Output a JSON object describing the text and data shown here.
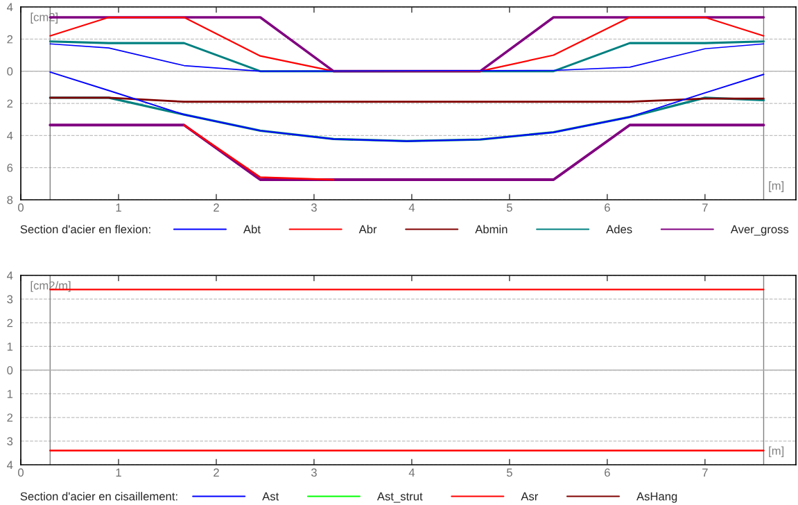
{
  "chart_data": [
    {
      "type": "line",
      "xlabel": "[m]",
      "ylabel": "[cm2]",
      "legend_title": "Section d'acier en flexion:",
      "legend": "bottom",
      "grid": "y",
      "xlim": [
        0,
        7.93
      ],
      "xticks": [
        0,
        1,
        2,
        3,
        4,
        5,
        6,
        7
      ],
      "ylim": [
        -8,
        4
      ],
      "yticks": [
        {
          "value": 4,
          "label": "4"
        },
        {
          "value": 2,
          "label": "2"
        },
        {
          "value": 0,
          "label": "0"
        },
        {
          "value": -2,
          "label": "2"
        },
        {
          "value": -4,
          "label": "4"
        },
        {
          "value": -6,
          "label": "6"
        },
        {
          "value": -8,
          "label": "8"
        }
      ],
      "ref_lines": [
        {
          "axis": "x",
          "value": 0.3,
          "color": "#808080"
        },
        {
          "axis": "x",
          "value": 7.6,
          "color": "#808080"
        },
        {
          "axis": "y",
          "value": 0,
          "color": "#b0b0b0"
        }
      ],
      "series": [
        {
          "name": "Abt",
          "color": "#0000ff",
          "x": [
            0.3,
            0.9,
            1.67,
            2.45,
            5.45,
            6.23,
            7.0,
            7.6
          ],
          "values": [
            1.7,
            1.45,
            0.35,
            0,
            0.05,
            0.25,
            1.4,
            1.7
          ]
        },
        {
          "color": "#0000ff",
          "x": [
            0.3,
            0.9,
            1.67,
            2.45,
            3.2,
            3.95,
            4.7,
            5.45,
            6.23,
            7.0,
            7.6
          ],
          "values": [
            -0.05,
            -1.2,
            -2.7,
            -3.7,
            -4.22,
            -4.35,
            -4.25,
            -3.8,
            -2.85,
            -1.35,
            -0.2
          ]
        },
        {
          "name": "Abr",
          "color": "#ff0000",
          "x": [
            0.3,
            0.9,
            1.67,
            2.45,
            3.2,
            4.7,
            5.45,
            6.23,
            7.0,
            7.6
          ],
          "values": [
            2.2,
            3.35,
            3.35,
            0.95,
            0,
            0,
            1.0,
            3.35,
            3.35,
            2.2
          ]
        },
        {
          "color": "#ff0000",
          "x": [
            1.67,
            2.45,
            3.2
          ],
          "values": [
            -3.35,
            -6.6,
            -6.75
          ]
        },
        {
          "name": "Abmin",
          "color": "#800000",
          "x": [
            0.3,
            0.9,
            1.67,
            6.23,
            7.0,
            7.6
          ],
          "values": [
            -1.65,
            -1.65,
            -1.9,
            -1.9,
            -1.7,
            -1.7
          ]
        },
        {
          "name": "Ades",
          "color": "#008080",
          "x": [
            0.3,
            0.9,
            1.67,
            2.45,
            5.45,
            6.23,
            7.0,
            7.6
          ],
          "values": [
            1.85,
            1.75,
            1.75,
            0,
            0,
            1.75,
            1.75,
            1.85
          ]
        },
        {
          "color": "#008080",
          "x": [
            0.3,
            0.9,
            1.67,
            2.45,
            3.2,
            3.95,
            4.7,
            5.45,
            6.23,
            7.0,
            7.6
          ],
          "values": [
            -1.65,
            -1.65,
            -2.7,
            -3.7,
            -4.22,
            -4.35,
            -4.25,
            -3.8,
            -2.85,
            -1.65,
            -1.8
          ]
        },
        {
          "name": "Aver_gross",
          "color": "#800080",
          "x": [
            0.3,
            2.45,
            3.2,
            4.7,
            5.45,
            7.6
          ],
          "values": [
            3.35,
            3.35,
            0,
            0,
            3.35,
            3.35
          ]
        },
        {
          "color": "#800080",
          "x": [
            0.3,
            1.67,
            2.45,
            5.45,
            6.23,
            7.6
          ],
          "values": [
            -3.35,
            -3.35,
            -6.75,
            -6.75,
            -3.35,
            -3.35
          ]
        }
      ]
    },
    {
      "type": "line",
      "xlabel": "[m]",
      "ylabel": "[cm2/m]",
      "legend_title": "Section d'acier en cisaillement:",
      "legend": "bottom",
      "grid": "y",
      "xlim": [
        0,
        7.93
      ],
      "xticks": [
        0,
        1,
        2,
        3,
        4,
        5,
        6,
        7
      ],
      "ylim": [
        -4,
        4
      ],
      "yticks": [
        {
          "value": 4,
          "label": "4"
        },
        {
          "value": 3,
          "label": "3"
        },
        {
          "value": 2,
          "label": "2"
        },
        {
          "value": 1,
          "label": "1"
        },
        {
          "value": 0,
          "label": "0"
        },
        {
          "value": -1,
          "label": "1"
        },
        {
          "value": -2,
          "label": "2"
        },
        {
          "value": -3,
          "label": "3"
        },
        {
          "value": -4,
          "label": "4"
        }
      ],
      "ref_lines": [
        {
          "axis": "x",
          "value": 0.3,
          "color": "#808080"
        },
        {
          "axis": "x",
          "value": 7.6,
          "color": "#808080"
        },
        {
          "axis": "y",
          "value": 0,
          "color": "#b0b0b0"
        }
      ],
      "series": [
        {
          "name": "Ast",
          "color": "#0000ff"
        },
        {
          "name": "Ast_strut",
          "color": "#00ff00"
        },
        {
          "name": "Asr",
          "color": "#ff0000",
          "x": [
            0.3,
            7.6
          ],
          "values": [
            3.4,
            3.4
          ]
        },
        {
          "color": "#ff0000",
          "x": [
            0.3,
            7.6
          ],
          "values": [
            -3.4,
            -3.4
          ]
        },
        {
          "name": "AsHang",
          "color": "#800000"
        }
      ]
    }
  ]
}
